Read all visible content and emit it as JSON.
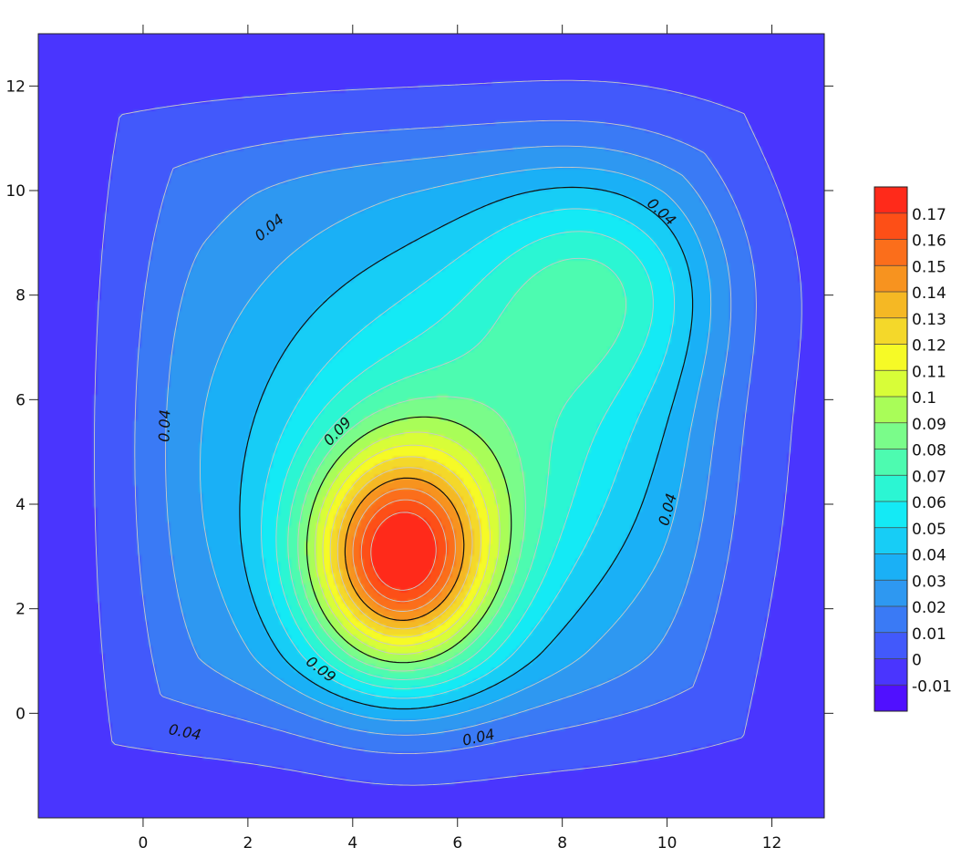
{
  "chart_data": {
    "type": "contour",
    "title": "",
    "xlabel": "",
    "ylabel": "",
    "xlim": [
      -2,
      13
    ],
    "ylim": [
      -2,
      13
    ],
    "x_ticks": [
      "0",
      "2",
      "4",
      "6",
      "8",
      "10",
      "12"
    ],
    "y_ticks": [
      "0",
      "2",
      "4",
      "6",
      "8",
      "10",
      "12"
    ],
    "peaks": [
      {
        "x": 4.9,
        "y": 2.95,
        "value": 0.175
      },
      {
        "x": 8.8,
        "y": 8.3,
        "value": 0.075
      }
    ],
    "contour_levels": [
      "-0.01",
      "0",
      "0.01",
      "0.02",
      "0.03",
      "0.04",
      "0.05",
      "0.06",
      "0.07",
      "0.08",
      "0.09",
      "0.1",
      "0.11",
      "0.12",
      "0.13",
      "0.14",
      "0.15",
      "0.16",
      "0.17"
    ],
    "highlighted_levels": [
      "0.04",
      "0.09",
      "0.14"
    ],
    "contour_labels": [
      {
        "text": "0.04",
        "x": 2.4,
        "y": 9.3
      },
      {
        "text": "0.04",
        "x": 9.9,
        "y": 9.6
      },
      {
        "text": "0.04",
        "x": 0.4,
        "y": 5.5
      },
      {
        "text": "0.04",
        "x": 10.0,
        "y": 3.9
      },
      {
        "text": "0.04",
        "x": 0.8,
        "y": -0.35
      },
      {
        "text": "0.04",
        "x": 6.4,
        "y": -0.45
      },
      {
        "text": "0.09",
        "x": 3.7,
        "y": 5.4
      },
      {
        "text": "0.09",
        "x": 3.4,
        "y": 0.85
      }
    ],
    "colorbar": {
      "colors": [
        "#5010ff",
        "#4a35fe",
        "#4259fb",
        "#3a7af5",
        "#2e98f1",
        "#1ab0f6",
        "#17cdf6",
        "#14eaf5",
        "#2bf6d3",
        "#4dfbb0",
        "#7afc8a",
        "#a9fd58",
        "#d8fd38",
        "#f6fa26",
        "#f4d82a",
        "#f5b824",
        "#f7931f",
        "#fb6e1b",
        "#fd4f17",
        "#ff2a1a"
      ],
      "labels": [
        "-0.01",
        "0",
        "0.01",
        "0.02",
        "0.03",
        "0.04",
        "0.05",
        "0.06",
        "0.07",
        "0.08",
        "0.09",
        "0.1",
        "0.11",
        "0.12",
        "0.13",
        "0.14",
        "0.15",
        "0.16",
        "0.17"
      ]
    },
    "grid": false,
    "legend": "right colorbar"
  }
}
